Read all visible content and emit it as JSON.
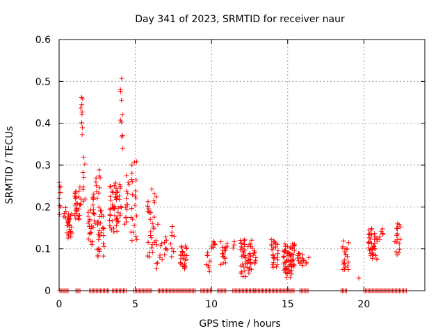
{
  "chart_data": {
    "type": "scatter",
    "title": "Day 341 of 2023, SRMTID for receiver naur",
    "xlabel": "GPS time / hours",
    "ylabel": "SRMTID / TECUs",
    "xlim": [
      0,
      24
    ],
    "ylim": [
      0,
      0.6
    ],
    "xticks": [
      0,
      5,
      10,
      15,
      20
    ],
    "xtick_labels": [
      "0",
      "5",
      "10",
      "15",
      "20"
    ],
    "yticks": [
      0,
      0.1,
      0.2,
      0.3,
      0.4,
      0.5,
      0.6
    ],
    "ytick_labels": [
      "0",
      "0.1",
      "0.2",
      "0.3",
      "0.4",
      "0.5",
      "0.6"
    ],
    "grid": true,
    "marker": "+",
    "series": [
      {
        "name": "SRMTID",
        "color": "#ff0000",
        "clusters": [
          {
            "x": [
              0.0,
              0.15
            ],
            "y": [
              0.18,
              0.27
            ],
            "n": 8
          },
          {
            "x": [
              0.3,
              0.45
            ],
            "y": [
              0.17,
              0.2
            ],
            "n": 5
          },
          {
            "x": [
              0.5,
              0.85
            ],
            "y": [
              0.12,
              0.19
            ],
            "n": 26
          },
          {
            "x": [
              1.0,
              1.45
            ],
            "y": [
              0.16,
              0.25
            ],
            "n": 30
          },
          {
            "x": [
              1.4,
              1.6
            ],
            "y": [
              0.37,
              0.47
            ],
            "n": 10
          },
          {
            "x": [
              1.5,
              1.7
            ],
            "y": [
              0.2,
              0.32
            ],
            "n": 8
          },
          {
            "x": [
              1.9,
              2.2
            ],
            "y": [
              0.1,
              0.2
            ],
            "n": 16
          },
          {
            "x": [
              2.2,
              2.5
            ],
            "y": [
              0.15,
              0.24
            ],
            "n": 12
          },
          {
            "x": [
              2.4,
              2.7
            ],
            "y": [
              0.22,
              0.29
            ],
            "n": 10
          },
          {
            "x": [
              2.5,
              3.0
            ],
            "y": [
              0.07,
              0.21
            ],
            "n": 30
          },
          {
            "x": [
              3.3,
              3.8
            ],
            "y": [
              0.13,
              0.26
            ],
            "n": 32
          },
          {
            "x": [
              3.7,
              4.1
            ],
            "y": [
              0.15,
              0.27
            ],
            "n": 20
          },
          {
            "x": [
              4.0,
              4.2
            ],
            "y": [
              0.33,
              0.52
            ],
            "n": 10
          },
          {
            "x": [
              4.3,
              4.6
            ],
            "y": [
              0.14,
              0.28
            ],
            "n": 14
          },
          {
            "x": [
              4.7,
              5.1
            ],
            "y": [
              0.1,
              0.32
            ],
            "n": 22
          },
          {
            "x": [
              5.8,
              6.5
            ],
            "y": [
              0.05,
              0.25
            ],
            "n": 34
          },
          {
            "x": [
              6.6,
              7.1
            ],
            "y": [
              0.07,
              0.13
            ],
            "n": 12
          },
          {
            "x": [
              7.3,
              7.6
            ],
            "y": [
              0.08,
              0.16
            ],
            "n": 8
          },
          {
            "x": [
              7.9,
              8.4
            ],
            "y": [
              0.05,
              0.11
            ],
            "n": 26
          },
          {
            "x": [
              9.6,
              9.9
            ],
            "y": [
              0.04,
              0.1
            ],
            "n": 8
          },
          {
            "x": [
              10.0,
              10.3
            ],
            "y": [
              0.1,
              0.12
            ],
            "n": 8
          },
          {
            "x": [
              10.6,
              11.1
            ],
            "y": [
              0.06,
              0.12
            ],
            "n": 18
          },
          {
            "x": [
              11.3,
              11.5
            ],
            "y": [
              0.1,
              0.12
            ],
            "n": 3
          },
          {
            "x": [
              11.9,
              12.7
            ],
            "y": [
              0.03,
              0.13
            ],
            "n": 50
          },
          {
            "x": [
              12.7,
              13.0
            ],
            "y": [
              0.06,
              0.1
            ],
            "n": 8
          },
          {
            "x": [
              13.9,
              14.4
            ],
            "y": [
              0.05,
              0.13
            ],
            "n": 24
          },
          {
            "x": [
              14.7,
              15.5
            ],
            "y": [
              0.03,
              0.12
            ],
            "n": 64
          },
          {
            "x": [
              15.6,
              16.4
            ],
            "y": [
              0.06,
              0.09
            ],
            "n": 16
          },
          {
            "x": [
              18.6,
              19.0
            ],
            "y": [
              0.04,
              0.12
            ],
            "n": 20
          },
          {
            "x": [
              19.6,
              19.7
            ],
            "y": [
              0.03,
              0.03
            ],
            "n": 1
          },
          {
            "x": [
              20.3,
              20.9
            ],
            "y": [
              0.07,
              0.15
            ],
            "n": 40
          },
          {
            "x": [
              21.0,
              21.3
            ],
            "y": [
              0.12,
              0.15
            ],
            "n": 6
          },
          {
            "x": [
              22.0,
              22.4
            ],
            "y": [
              0.08,
              0.17
            ],
            "n": 16
          }
        ],
        "zero_segments": [
          [
            0.05,
            0.6
          ],
          [
            1.1,
            1.4
          ],
          [
            2.0,
            3.3
          ],
          [
            3.5,
            4.4
          ],
          [
            4.9,
            6.1
          ],
          [
            6.5,
            9.0
          ],
          [
            9.3,
            10.1
          ],
          [
            10.4,
            11.0
          ],
          [
            11.4,
            12.9
          ],
          [
            12.9,
            15.5
          ],
          [
            15.8,
            16.4
          ],
          [
            18.5,
            18.9
          ],
          [
            20.0,
            22.8
          ]
        ]
      }
    ]
  }
}
